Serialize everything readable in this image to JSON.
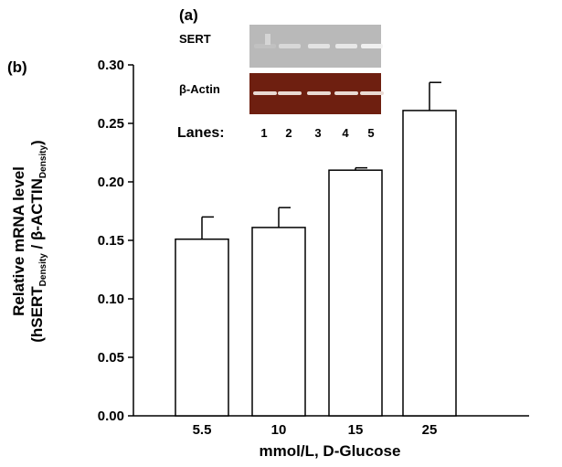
{
  "panels": {
    "a": "(a)",
    "b": "(b)"
  },
  "gel": {
    "rows": [
      "SERT",
      "β-Actin"
    ],
    "lanes_label": "Lanes:",
    "lanes": [
      "1",
      "2",
      "3",
      "4",
      "5"
    ],
    "colors": {
      "sert_bg": "#b9b9b9",
      "sert_band": "#f2f2f2",
      "actin_bg": "#6e1f10",
      "actin_band": "#e9dad3"
    }
  },
  "chart_data": {
    "type": "bar",
    "categories": [
      "5.5",
      "10",
      "15",
      "25"
    ],
    "values": [
      0.151,
      0.161,
      0.21,
      0.261
    ],
    "errors": [
      0.019,
      0.017,
      0.002,
      0.024
    ],
    "ylim": [
      0,
      0.3
    ],
    "yticks": [
      "0.00",
      "0.05",
      "0.10",
      "0.15",
      "0.20",
      "0.25",
      "0.30"
    ],
    "xlabel": "mmol/L, D-Glucose",
    "ylabel": {
      "line1": "Relative mRNA level",
      "line2_prefix": "(hSERT",
      "line2_sub1": "Density",
      "line2_mid": " / β-ACTIN",
      "line2_sub2": "Density",
      "line2_suffix": ")"
    },
    "grid": false,
    "legend": "none",
    "bar_fill": "#ffffff",
    "bar_stroke": "#000000"
  }
}
